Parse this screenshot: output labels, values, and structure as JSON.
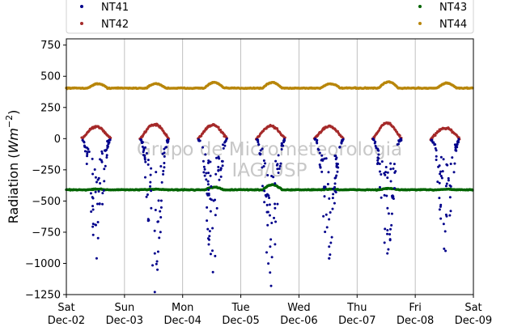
{
  "chart_data": {
    "type": "scatter",
    "title": "",
    "ylabel": "Radiation ($Wm^{-2}$)",
    "ylabel_parts": {
      "main": "Radiation (",
      "unit_base": "Wm",
      "unit_exp": "−2",
      "close": ")"
    },
    "watermark": [
      "Grupo de Micrometeorologia",
      "IAG/USP"
    ],
    "ylim": [
      -1250,
      800
    ],
    "yticks": [
      {
        "value": 750,
        "label": "750"
      },
      {
        "value": 500,
        "label": "500"
      },
      {
        "value": 250,
        "label": "250"
      },
      {
        "value": 0,
        "label": "0"
      },
      {
        "value": -250,
        "label": "−250"
      },
      {
        "value": -500,
        "label": "−500"
      },
      {
        "value": -750,
        "label": "−750"
      },
      {
        "value": -1000,
        "label": "−1000"
      },
      {
        "value": -1250,
        "label": "−1250"
      }
    ],
    "xlim": [
      "2017-12-02",
      "2017-12-09"
    ],
    "xticks": [
      {
        "day": "Sat",
        "date": "Dec-02"
      },
      {
        "day": "Sun",
        "date": "Dec-03"
      },
      {
        "day": "Mon",
        "date": "Dec-04"
      },
      {
        "day": "Tue",
        "date": "Dec-05"
      },
      {
        "day": "Wed",
        "date": "Dec-06"
      },
      {
        "day": "Thu",
        "date": "Dec-07"
      },
      {
        "day": "Fri",
        "date": "Dec-08"
      },
      {
        "day": "Sat",
        "date": "Dec-09"
      }
    ],
    "grid": "vertical-major",
    "legend_position": "top",
    "series": [
      {
        "name": "NT41",
        "color": "#00008b",
        "daily_min": [
          -960,
          -1230,
          -1070,
          -1180,
          -960,
          -920,
          -900
        ],
        "daily_peak_hour": [
          12.5,
          12.5,
          12.5,
          12.5,
          12.5,
          12.5,
          12.5
        ]
      },
      {
        "name": "NT42",
        "color": "#a52a2a",
        "daily_max": [
          95,
          115,
          110,
          100,
          100,
          125,
          85
        ]
      },
      {
        "name": "NT43",
        "color": "#006400",
        "baseline": -410,
        "daily_max": [
          -405,
          -405,
          -390,
          -370,
          -405,
          -400,
          -405
        ]
      },
      {
        "name": "NT44",
        "color": "#b8860b",
        "baseline": 405,
        "daily_max": [
          440,
          440,
          450,
          450,
          440,
          455,
          445
        ]
      }
    ]
  }
}
